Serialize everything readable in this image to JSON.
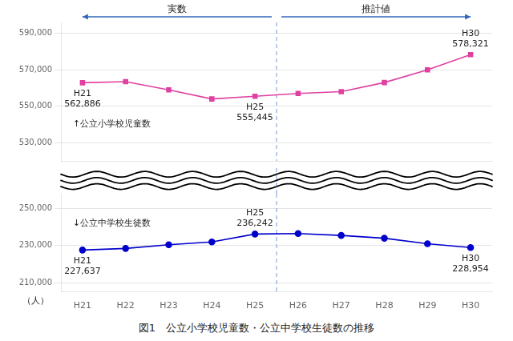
{
  "chart_data": {
    "type": "line",
    "title": "図1　公立小学校児童数・公立中学校生徒数の推移",
    "ylabel": "（人）",
    "categories": [
      "H21",
      "H22",
      "H23",
      "H24",
      "H25",
      "H26",
      "H27",
      "H28",
      "H29",
      "H30"
    ],
    "series": [
      {
        "name": "↑公立小学校児童数",
        "color": "#e040a0",
        "marker": "square",
        "values": [
          562886,
          563500,
          559000,
          554000,
          555445,
          557000,
          558000,
          563000,
          570000,
          578321
        ]
      },
      {
        "name": "↓公立中学校生徒数",
        "color": "#0000cc",
        "marker": "circle",
        "axis": "y2",
        "values": [
          227637,
          228500,
          230500,
          232000,
          236242,
          236500,
          235500,
          234000,
          231000,
          228954
        ]
      }
    ],
    "ylim": [
      520000,
      596000
    ],
    "yticks": [
      {
        "value": 530000,
        "label": "530,000"
      },
      {
        "value": 550000,
        "label": "550,000"
      },
      {
        "value": 570000,
        "label": "570,000"
      },
      {
        "value": 590000,
        "label": "590,000"
      }
    ],
    "y2lim": [
      205000,
      258000
    ],
    "y2ticks": [
      {
        "value": 210000,
        "label": "210,000"
      },
      {
        "value": 230000,
        "label": "230,000"
      },
      {
        "value": 250000,
        "label": "250,000"
      }
    ],
    "grid": true,
    "annotations": [
      {
        "series": 0,
        "x": "H21",
        "text": [
          "H21",
          "562,886"
        ]
      },
      {
        "series": 0,
        "x": "H25",
        "text": [
          "H25",
          "555,445"
        ]
      },
      {
        "series": 0,
        "x": "H30",
        "text": [
          "H30",
          "578,321"
        ]
      },
      {
        "series": 1,
        "x": "H21",
        "text": [
          "H21",
          "227,637"
        ]
      },
      {
        "series": 1,
        "x": "H25",
        "text": [
          "H25",
          "236,242"
        ]
      },
      {
        "series": 1,
        "x": "H30",
        "text": [
          "H30",
          "228,954"
        ]
      },
      {
        "text": "実数",
        "from": "H21",
        "to": "H25"
      },
      {
        "text": "推計値",
        "from": "H26",
        "to": "H30"
      }
    ]
  }
}
